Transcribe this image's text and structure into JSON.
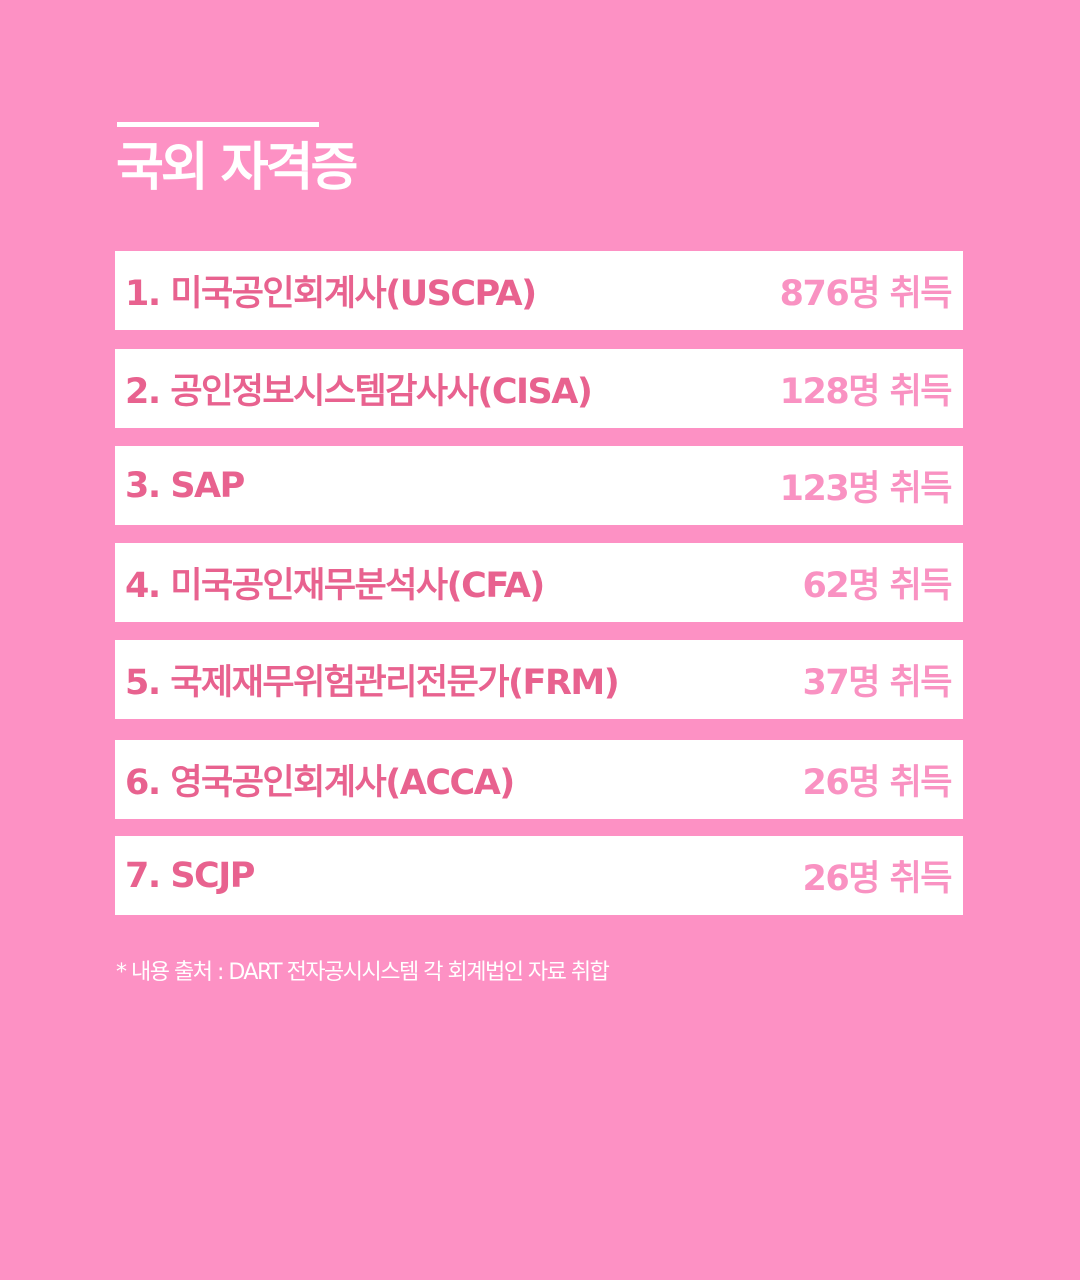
{
  "title": "국외 자격증",
  "colors": {
    "background": "#fd91c4",
    "label": "#e8628f",
    "count": "#f992c2",
    "row": "#ffffff"
  },
  "items": [
    {
      "label": "1. 미국공인회계사(USCPA)",
      "count": "876명 취득"
    },
    {
      "label": "2. 공인정보시스템감사사(CISA)",
      "count": "128명 취득"
    },
    {
      "label": "3. SAP",
      "count": "123명 취득"
    },
    {
      "label": "4. 미국공인재무분석사(CFA)",
      "count": "62명 취득"
    },
    {
      "label": "5. 국제재무위험관리전문가(FRM)",
      "count": "37명 취득"
    },
    {
      "label": "6. 영국공인회계사(ACCA)",
      "count": "26명 취득"
    },
    {
      "label": "7. SCJP",
      "count": "26명 취득"
    }
  ],
  "note": "* 내용 출처 : DART 전자공시시스템 각 회계법인 자료 취합"
}
